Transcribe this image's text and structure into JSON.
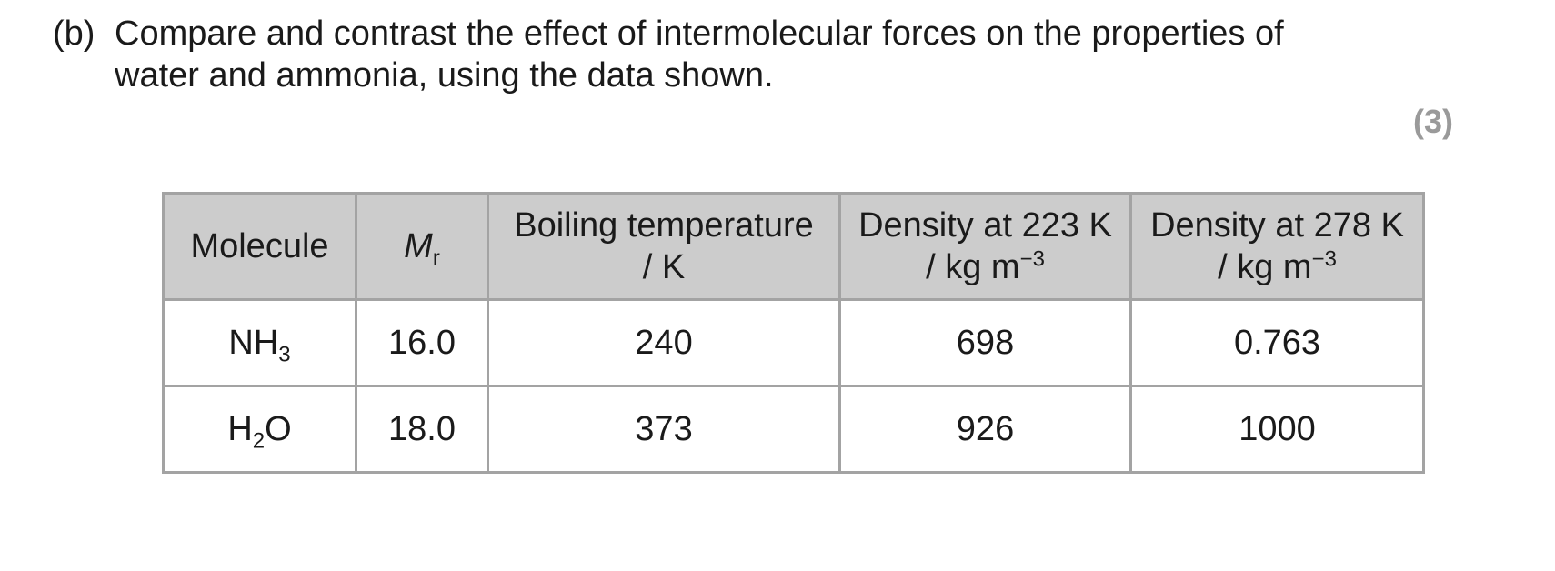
{
  "question": {
    "label": "(b)",
    "text_line1": "Compare and contrast the effect of intermolecular forces on the properties of",
    "text_line2": "water and ammonia, using the data shown.",
    "marks": "(3)"
  },
  "table": {
    "headers": {
      "molecule": "Molecule",
      "mr_symbol": "M",
      "mr_subscript": "r",
      "boiling_line1": "Boiling temperature",
      "boiling_line2": "/ K",
      "density223_line1": "Density at 223 K",
      "density223_unit": "/ kg m",
      "density223_exp": "−3",
      "density278_line1": "Density at 278 K",
      "density278_unit": "/ kg m",
      "density278_exp": "−3"
    },
    "rows": [
      {
        "molecule_main": "NH",
        "molecule_sub": "3",
        "molecule_tail": "",
        "mr": "16.0",
        "boiling": "240",
        "density223": "698",
        "density278": "0.763"
      },
      {
        "molecule_main": "H",
        "molecule_sub": "2",
        "molecule_tail": "O",
        "mr": "18.0",
        "boiling": "373",
        "density223": "926",
        "density278": "1000"
      }
    ]
  }
}
